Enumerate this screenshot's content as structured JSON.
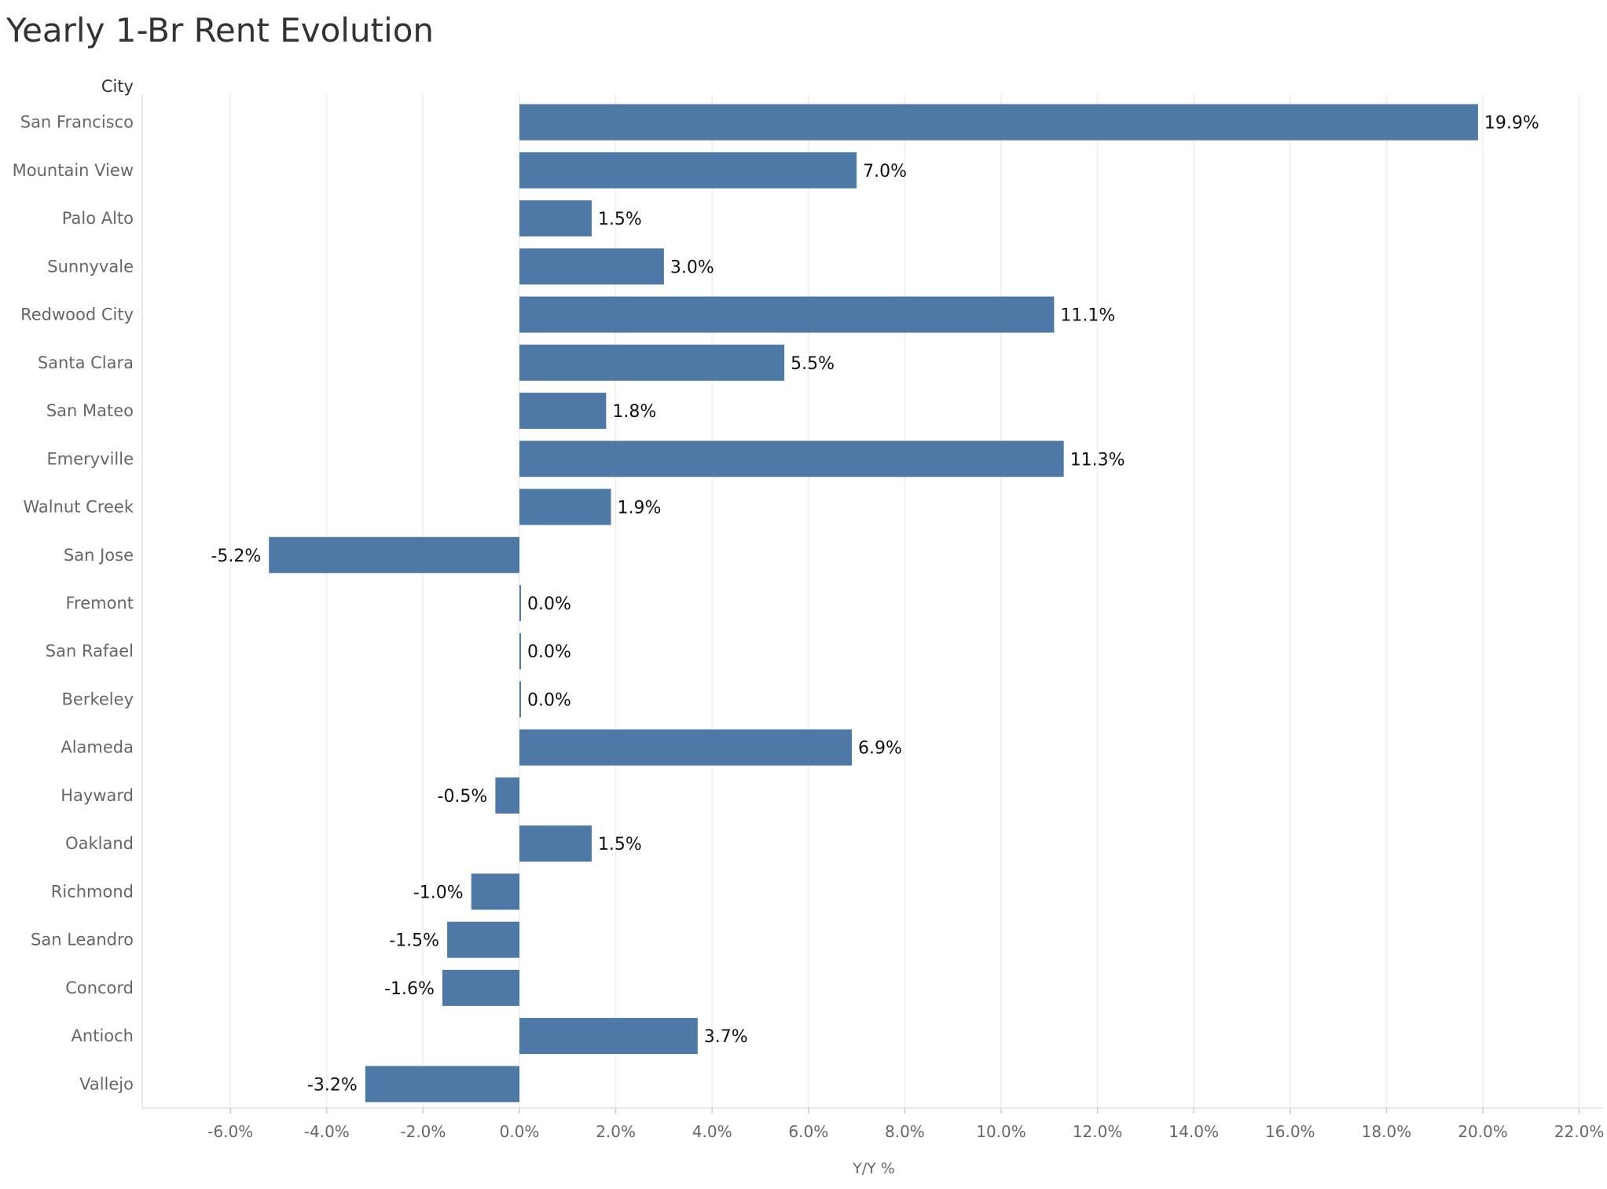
{
  "chart_data": {
    "type": "bar",
    "orientation": "horizontal",
    "title": "Yearly 1-Br Rent Evolution",
    "dimension_header": "City",
    "xlabel": "Y/Y %",
    "ylabel": "",
    "xlim": [
      -7.5,
      22.5
    ],
    "ticks": [
      -6,
      -4,
      -2,
      0,
      2,
      4,
      6,
      8,
      10,
      12,
      14,
      16,
      18,
      20,
      22
    ],
    "tick_labels": [
      "-6.0%",
      "-4.0%",
      "-2.0%",
      "0.0%",
      "2.0%",
      "4.0%",
      "6.0%",
      "8.0%",
      "10.0%",
      "12.0%",
      "14.0%",
      "16.0%",
      "18.0%",
      "20.0%",
      "22.0%"
    ],
    "grid": true,
    "bar_color": "#4e79a7",
    "categories": [
      "San Francisco",
      "Mountain View",
      "Palo Alto",
      "Sunnyvale",
      "Redwood City",
      "Santa Clara",
      "San Mateo",
      "Emeryville",
      "Walnut Creek",
      "San Jose",
      "Fremont",
      "San Rafael",
      "Berkeley",
      "Alameda",
      "Hayward",
      "Oakland",
      "Richmond",
      "San Leandro",
      "Concord",
      "Antioch",
      "Vallejo"
    ],
    "values": [
      19.9,
      7.0,
      1.5,
      3.0,
      11.1,
      5.5,
      1.8,
      11.3,
      1.9,
      -5.2,
      0.0,
      0.0,
      0.0,
      6.9,
      -0.5,
      1.5,
      -1.0,
      -1.5,
      -1.6,
      3.7,
      -3.2
    ],
    "data_labels": [
      "19.9%",
      "7.0%",
      "1.5%",
      "3.0%",
      "11.1%",
      "5.5%",
      "1.8%",
      "11.3%",
      "1.9%",
      "-5.2%",
      "0.0%",
      "0.0%",
      "0.0%",
      "6.9%",
      "-0.5%",
      "1.5%",
      "-1.0%",
      "-1.5%",
      "-1.6%",
      "3.7%",
      "-3.2%"
    ]
  }
}
